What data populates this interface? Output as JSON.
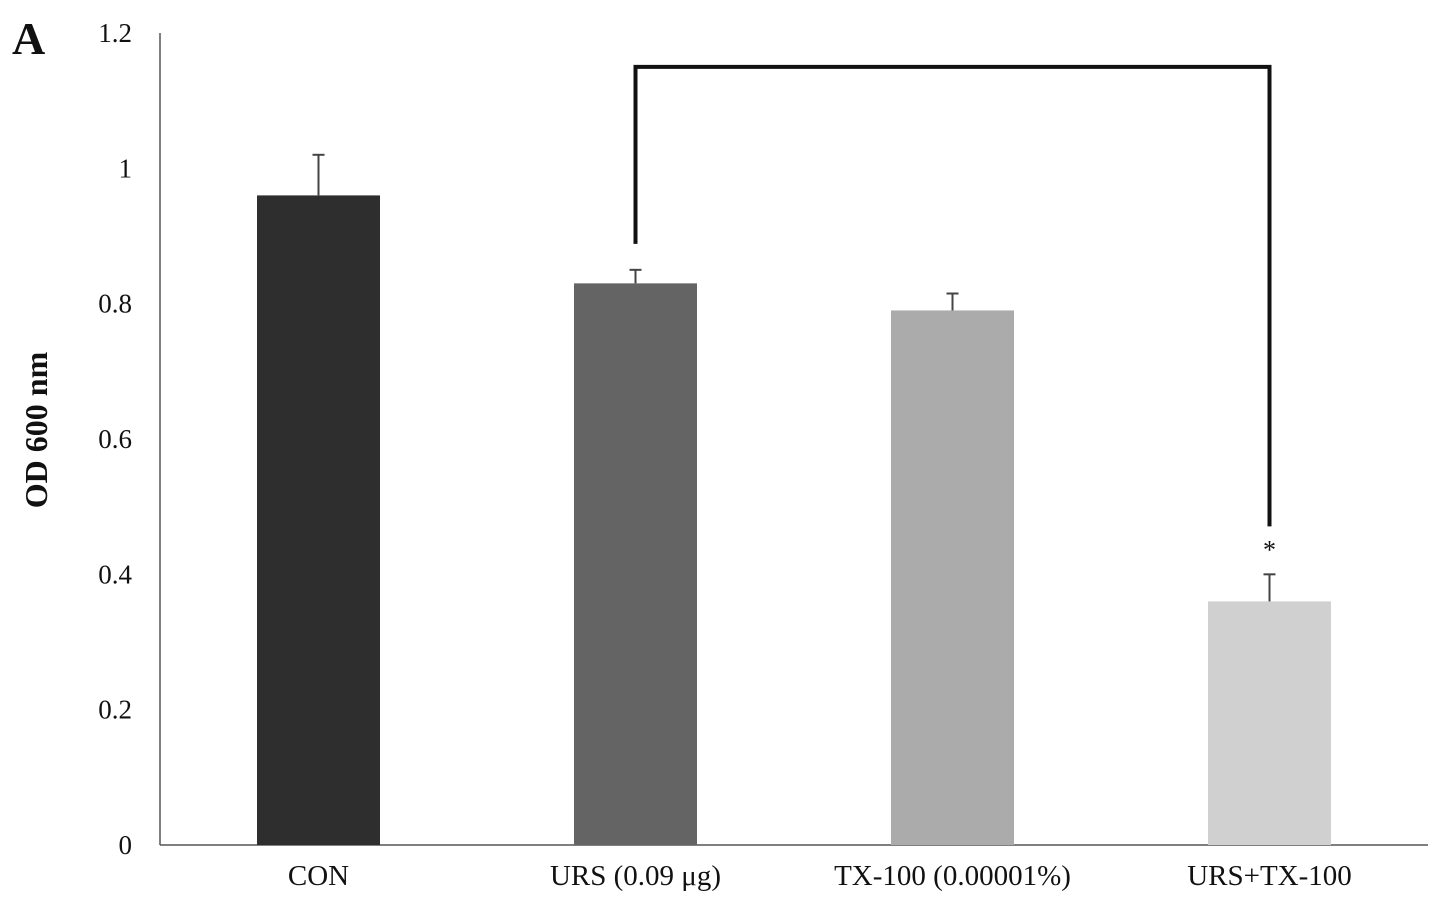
{
  "chart_data": {
    "type": "bar",
    "panel_label": "A",
    "title": "",
    "xlabel": "",
    "ylabel": "OD 600 nm",
    "ylim": [
      0,
      1.2
    ],
    "yticks": [
      "0",
      "0.2",
      "0.4",
      "0.6",
      "0.8",
      "1",
      "1.2"
    ],
    "categories": [
      "CON",
      "URS (0.09 μg)",
      "TX-100 (0.00001%)",
      "URS+TX-100"
    ],
    "values": [
      0.96,
      0.83,
      0.79,
      0.36
    ],
    "errors": [
      0.06,
      0.02,
      0.025,
      0.04
    ],
    "colors": [
      "#2e2e2e",
      "#646464",
      "#ababab",
      "#d0d0d0"
    ],
    "grid": false,
    "legend": "none",
    "significance": {
      "from_category": "URS (0.09 μg)",
      "to_category": "URS+TX-100",
      "bracket_y": 1.15,
      "symbol": "*"
    }
  }
}
